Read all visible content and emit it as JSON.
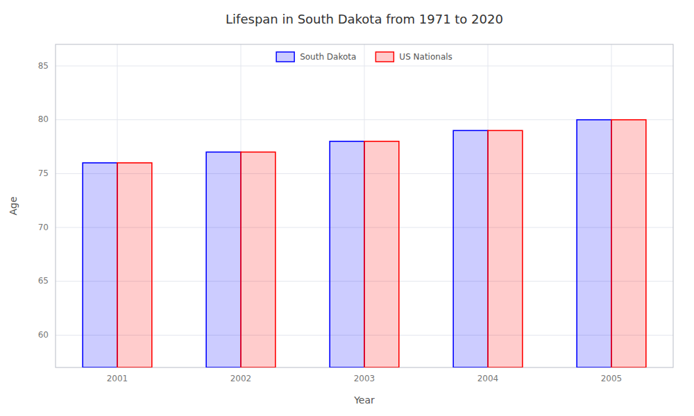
{
  "chart_data": {
    "type": "bar",
    "title": "Lifespan in South Dakota from 1971 to 2020",
    "x_label": "Year",
    "y_label": "Age",
    "categories": [
      "2001",
      "2002",
      "2003",
      "2004",
      "2005"
    ],
    "series": [
      {
        "name": "South Dakota",
        "color": "#0000ff",
        "values": [
          76,
          77,
          78,
          79,
          80
        ]
      },
      {
        "name": "US Nationals",
        "color": "#ff0000",
        "values": [
          76,
          77,
          78,
          79,
          80
        ]
      }
    ],
    "ylim": [
      57,
      87
    ],
    "yticks": [
      60,
      65,
      70,
      75,
      80,
      85
    ],
    "grid": true,
    "legend": "top"
  }
}
